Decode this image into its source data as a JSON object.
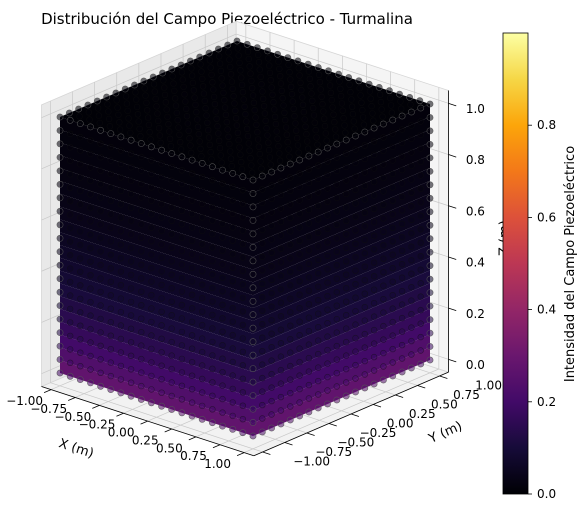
{
  "chart_data": {
    "type": "scatter3d",
    "title": "Distribución del Campo Piezoeléctrico - Turmalina",
    "xlabel": "X (m)",
    "ylabel": "Y (m)",
    "zlabel": "Z (m)",
    "xlim": [
      -1.0,
      1.0
    ],
    "ylim": [
      -1.0,
      1.0
    ],
    "zlim": [
      0.0,
      1.0
    ],
    "x_ticks": [
      "−1.00",
      "−0.75",
      "−0.50",
      "−0.25",
      "0.00",
      "0.25",
      "0.50",
      "0.75",
      "1.00"
    ],
    "y_ticks": [
      "−1.00",
      "−0.75",
      "−0.50",
      "−0.25",
      "0.00",
      "0.25",
      "0.50",
      "0.75",
      "1.00"
    ],
    "z_ticks": [
      "0.0",
      "0.2",
      "0.4",
      "0.6",
      "0.8",
      "1.0"
    ],
    "colorbar": {
      "label": "Intensidad del Campo Piezoeléctrico",
      "colormap": "inferno",
      "range": [
        0.0,
        1.0
      ],
      "ticks": [
        "0.0",
        "0.2",
        "0.4",
        "0.6",
        "0.8"
      ]
    },
    "field_description": "points on a 20x20x20 grid over the cube; intensity highest near z = 0 and decays toward z = 1 (max visible about 0.35)"
  }
}
